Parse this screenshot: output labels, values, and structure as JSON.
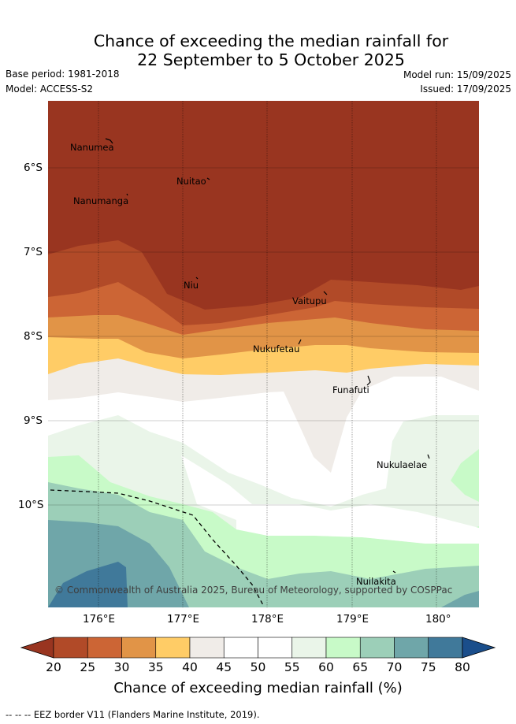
{
  "title_line1": "Chance of exceeding the median rainfall for",
  "title_line2": "22 September to 5 October 2025",
  "base_period": "Base period: 1981-2018",
  "model": "Model: ACCESS-S2",
  "model_run": "Model run: 15/09/2025",
  "issued": "Issued: 17/09/2025",
  "lat_ticks": [
    "6°S",
    "7°S",
    "8°S",
    "9°S",
    "10°S"
  ],
  "lon_ticks": [
    "176°E",
    "177°E",
    "178°E",
    "179°E",
    "180°"
  ],
  "places": {
    "nanumea": "Nanumea",
    "nuitao": "Nuitao",
    "nanumanga": "Nanumanga",
    "niu": "Niu",
    "vaitupu": "Vaitupu",
    "nukufetau": "Nukufetau",
    "funafuti": "Funafuti",
    "nukulaelae": "Nukulaelae",
    "nuilakita": "Nuilakita"
  },
  "copyright": "© Commonwealth of Australia 2025, Bureau of Meteorology, supported by COSPPac",
  "colorbar": {
    "title": "Chance of exceeding median rainfall (%)",
    "labels": [
      "20",
      "25",
      "30",
      "35",
      "40",
      "45",
      "50",
      "55",
      "60",
      "65",
      "70",
      "75",
      "80"
    ],
    "colors": [
      "#993520",
      "#b14a28",
      "#cc6535",
      "#e19447",
      "#ffcc66",
      "#f0ece8",
      "#ffffff",
      "#ffffff",
      "#eaf5e9",
      "#c8fac8",
      "#9ccfb8",
      "#6fa6a9",
      "#40799a",
      "#1a4e8b"
    ]
  },
  "footer": "-- -- -- EEZ border V11 (Flanders Marine Institute, 2019)."
}
